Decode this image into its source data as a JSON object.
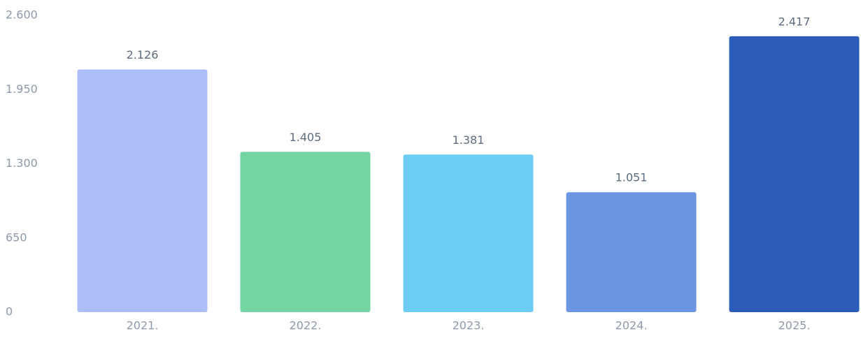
{
  "chart_data": {
    "type": "bar",
    "categories": [
      "2021.",
      "2022.",
      "2023.",
      "2024.",
      "2025."
    ],
    "values": [
      2126,
      1405,
      1381,
      1051,
      2417
    ],
    "value_labels": [
      "2.126",
      "1.405",
      "1.381",
      "1.051",
      "2.417"
    ],
    "colors": [
      "#abbef6",
      "#74d4a4",
      "#6dcdf6",
      "#6b97e2",
      "#2c5cba"
    ],
    "ylim": [
      0,
      2600
    ],
    "yticks": [
      0,
      650,
      {
        "value": 1300,
        "label": "1.300"
      },
      {
        "value": 1950,
        "label": "1.950"
      },
      {
        "value": 2600,
        "label": "2.600"
      }
    ],
    "grid": false
  }
}
